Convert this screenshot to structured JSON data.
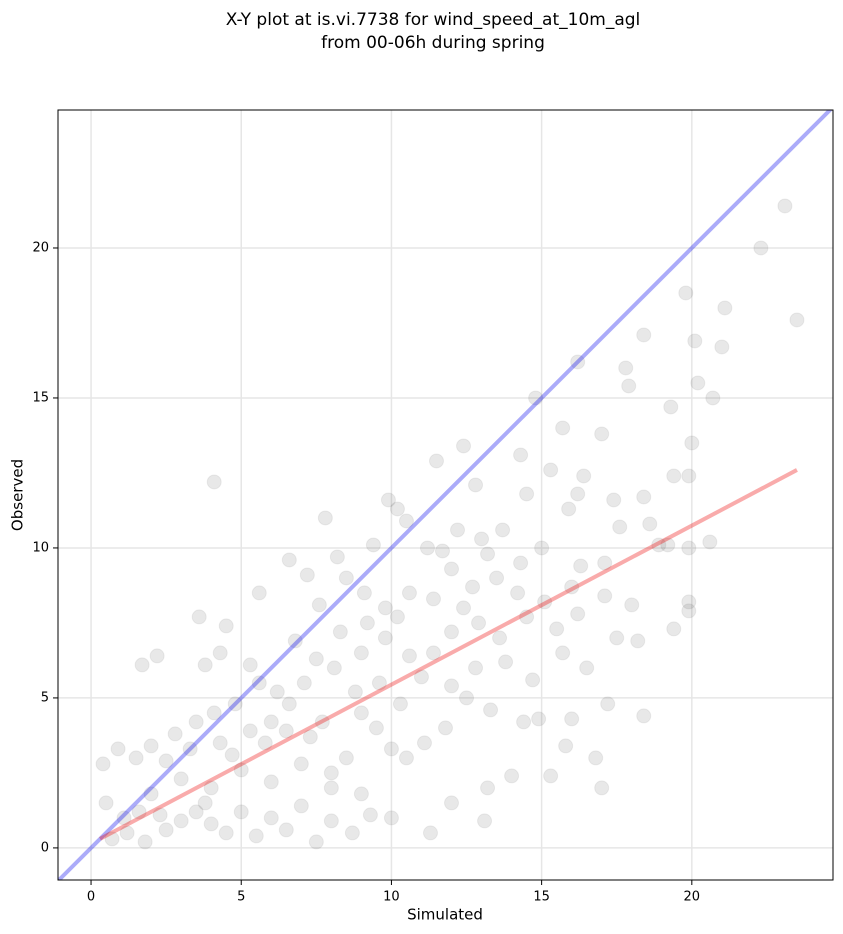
{
  "chart_data": {
    "type": "scatter",
    "title": "X-Y plot at is.vi.7738 for wind_speed_at_10m_agl",
    "subtitle": "from 00-06h during spring",
    "x_label": "Simulated",
    "y_label": "Observed",
    "color": "#444444",
    "xlim": [
      -1.1,
      24.7
    ],
    "ylim": [
      -1.07,
      24.6
    ],
    "xticks": [
      0,
      5,
      10,
      15,
      20
    ],
    "yticks": [
      0,
      5,
      10,
      15,
      20
    ],
    "grid": true,
    "x": [
      23.1,
      22.3,
      23.5,
      21.1,
      19.8,
      20.1,
      21.0,
      20.7,
      20.2,
      19.3,
      18.4,
      17.8,
      17.9,
      16.2,
      14.8,
      4.1,
      12.4,
      11.5,
      20.0,
      19.9,
      19.4,
      17.0,
      16.4,
      15.7,
      15.3,
      14.3,
      12.8,
      9.9,
      10.2,
      7.8,
      10.5,
      18.4,
      17.4,
      16.2,
      15.9,
      14.5,
      13.7,
      13.0,
      12.2,
      11.2,
      9.4,
      8.5,
      6.6,
      19.2,
      18.9,
      20.6,
      19.9,
      17.1,
      16.3,
      15.0,
      14.3,
      13.5,
      12.7,
      12.0,
      11.4,
      10.6,
      9.8,
      9.1,
      8.2,
      7.6,
      7.2,
      19.9,
      19.9,
      19.4,
      18.0,
      17.1,
      16.2,
      15.5,
      14.5,
      13.6,
      12.9,
      12.0,
      11.4,
      10.6,
      9.8,
      9.0,
      8.3,
      7.5,
      6.8,
      5.6,
      3.6,
      4.5,
      5.3,
      4.3,
      3.8,
      2.2,
      1.7,
      16.0,
      17.2,
      18.4,
      16.8,
      17.0,
      15.3,
      15.8,
      14.0,
      13.2,
      13.1,
      12.0,
      14.9,
      14.4,
      13.3,
      12.5,
      11.8,
      11.1,
      10.5,
      10.0,
      9.5,
      9.0,
      8.5,
      8.0,
      7.3,
      6.6,
      6.0,
      5.6,
      4.8,
      4.1,
      3.5,
      2.8,
      2.0,
      1.5,
      0.9,
      0.4,
      0.5,
      0.7,
      1.2,
      1.8,
      2.5,
      3.0,
      3.5,
      4.0,
      4.5,
      5.0,
      5.5,
      6.0,
      6.5,
      7.0,
      7.5,
      8.0,
      8.7,
      9.3,
      10.0,
      11.3,
      2.0,
      3.0,
      4.0,
      5.0,
      6.0,
      7.0,
      8.0,
      9.0,
      2.5,
      3.3,
      4.7,
      5.8,
      6.5,
      7.7,
      8.8,
      9.6,
      10.3,
      11.0,
      12.0,
      12.8,
      13.8,
      14.7,
      15.7,
      16.5,
      17.5,
      18.2,
      1.1,
      1.6,
      2.3,
      3.8,
      4.3,
      5.3,
      6.2,
      7.1,
      8.1,
      9.2,
      10.2,
      11.7,
      12.4,
      13.2,
      14.2,
      15.1,
      16.0,
      17.6,
      18.6
    ],
    "values": [
      21.4,
      20.0,
      17.6,
      18.0,
      18.5,
      16.9,
      16.7,
      15.0,
      15.5,
      14.7,
      17.1,
      16.0,
      15.4,
      16.2,
      15.0,
      12.2,
      13.4,
      12.9,
      13.5,
      12.4,
      12.4,
      13.8,
      12.4,
      14.0,
      12.6,
      13.1,
      12.1,
      11.6,
      11.3,
      11.0,
      10.9,
      11.7,
      11.6,
      11.8,
      11.3,
      11.8,
      10.6,
      10.3,
      10.6,
      10.0,
      10.1,
      9.0,
      9.6,
      10.1,
      10.1,
      10.2,
      10.0,
      9.5,
      9.4,
      10.0,
      9.5,
      9.0,
      8.7,
      9.3,
      8.3,
      8.5,
      8.0,
      8.5,
      9.7,
      8.1,
      9.1,
      8.2,
      7.9,
      7.3,
      8.1,
      8.4,
      7.8,
      7.3,
      7.7,
      7.0,
      7.5,
      7.2,
      6.5,
      6.4,
      7.0,
      6.5,
      7.2,
      6.3,
      6.9,
      8.5,
      7.7,
      7.4,
      6.1,
      6.5,
      6.1,
      6.4,
      6.1,
      4.3,
      4.8,
      4.4,
      3.0,
      2.0,
      2.4,
      3.4,
      2.4,
      2.0,
      0.9,
      1.5,
      4.3,
      4.2,
      4.6,
      5.0,
      4.0,
      3.5,
      3.0,
      3.3,
      4.0,
      4.5,
      3.0,
      2.5,
      3.7,
      4.8,
      4.2,
      5.5,
      4.8,
      4.5,
      4.2,
      3.8,
      3.4,
      3.0,
      3.3,
      2.8,
      1.5,
      0.3,
      0.5,
      0.2,
      0.6,
      0.9,
      1.2,
      0.8,
      0.5,
      1.2,
      0.4,
      1.0,
      0.6,
      1.4,
      0.2,
      0.9,
      0.5,
      1.1,
      1.0,
      0.5,
      1.8,
      2.3,
      2.0,
      2.6,
      2.2,
      2.8,
      2.0,
      1.8,
      2.9,
      3.3,
      3.1,
      3.5,
      3.9,
      4.2,
      5.2,
      5.5,
      4.8,
      5.7,
      5.4,
      6.0,
      6.2,
      5.6,
      6.5,
      6.0,
      7.0,
      6.9,
      1.0,
      1.2,
      1.1,
      1.5,
      3.5,
      3.9,
      5.2,
      5.5,
      6.0,
      7.5,
      7.7,
      9.9,
      8.0,
      9.8,
      8.5,
      8.2,
      8.7,
      10.7,
      10.8
    ],
    "lines": [
      {
        "color": "#0000ee",
        "x": [
          -1.1,
          24.7
        ],
        "y": [
          -1.1,
          24.7
        ]
      },
      {
        "color": "#ee0000",
        "x": [
          0.3,
          23.5
        ],
        "y": [
          0.3,
          12.6
        ]
      }
    ]
  }
}
